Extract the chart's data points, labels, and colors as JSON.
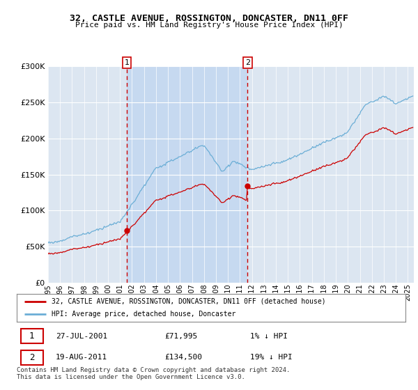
{
  "title": "32, CASTLE AVENUE, ROSSINGTON, DONCASTER, DN11 0FF",
  "subtitle": "Price paid vs. HM Land Registry's House Price Index (HPI)",
  "legend_line1": "32, CASTLE AVENUE, ROSSINGTON, DONCASTER, DN11 0FF (detached house)",
  "legend_line2": "HPI: Average price, detached house, Doncaster",
  "annotation1_date": "27-JUL-2001",
  "annotation1_price": "£71,995",
  "annotation1_hpi": "1% ↓ HPI",
  "annotation2_date": "19-AUG-2011",
  "annotation2_price": "£134,500",
  "annotation2_hpi": "19% ↓ HPI",
  "footer": "Contains HM Land Registry data © Crown copyright and database right 2024.\nThis data is licensed under the Open Government Licence v3.0.",
  "hpi_color": "#6baed6",
  "price_color": "#cc0000",
  "vline_color": "#cc0000",
  "background_color": "#dce6f1",
  "highlight_color": "#c6d9f0",
  "ylim": [
    0,
    300000
  ],
  "yticks": [
    0,
    50000,
    100000,
    150000,
    200000,
    250000,
    300000
  ],
  "sale1_x": 2001.573,
  "sale1_y": 71995,
  "sale2_x": 2011.636,
  "sale2_y": 134500,
  "xlim_left": 1995.0,
  "xlim_right": 2025.5
}
